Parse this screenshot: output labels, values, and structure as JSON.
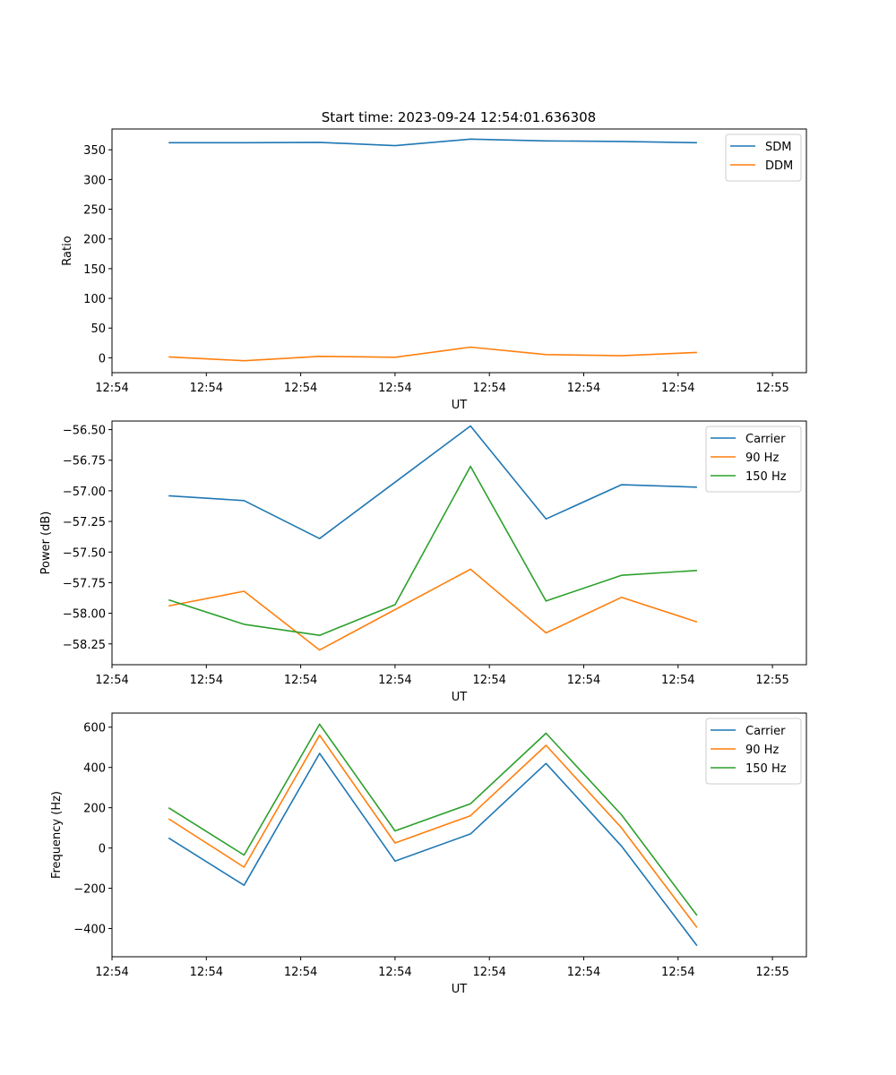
{
  "figure": {
    "title": "Start time: 2023-09-24 12:54:01.636308"
  },
  "chart_data": [
    {
      "type": "line",
      "name": "ratio",
      "xlabel": "UT",
      "ylabel": "Ratio",
      "x_ticks": [
        "12:54",
        "12:54",
        "12:54",
        "12:54",
        "12:54",
        "12:54",
        "12:54"
      ],
      "x_tick_last": "12:55",
      "xlim": [
        0,
        92
      ],
      "x": [
        7.5,
        17.5,
        27.5,
        37.5,
        47.5,
        57.5,
        67.5,
        77.5
      ],
      "ylim": [
        -25,
        385
      ],
      "y_ticks": [
        0,
        50,
        100,
        150,
        200,
        250,
        300,
        350
      ],
      "series": [
        {
          "name": "SDM",
          "color": "#1f77b4",
          "values": [
            362,
            362,
            362.5,
            357,
            368,
            365,
            364,
            362
          ]
        },
        {
          "name": "DDM",
          "color": "#ff7f0e",
          "values": [
            1.5,
            -5,
            2.5,
            1,
            18,
            5.5,
            3.5,
            9
          ]
        }
      ],
      "legend": "top-right"
    },
    {
      "type": "line",
      "name": "power",
      "xlabel": "UT",
      "ylabel": "Power (dB)",
      "x_ticks": [
        "12:54",
        "12:54",
        "12:54",
        "12:54",
        "12:54",
        "12:54",
        "12:54"
      ],
      "x_tick_last": "12:55",
      "xlim": [
        0,
        92
      ],
      "x": [
        7.5,
        17.5,
        27.5,
        37.5,
        47.5,
        57.5,
        67.5,
        77.5
      ],
      "ylim": [
        -58.42,
        -56.43
      ],
      "y_ticks": [
        -58.25,
        -58.0,
        -57.75,
        -57.5,
        -57.25,
        -57.0,
        -56.75,
        -56.5
      ],
      "series": [
        {
          "name": "Carrier",
          "color": "#1f77b4",
          "values": [
            -57.04,
            -57.08,
            -57.39,
            -56.93,
            -56.47,
            -57.23,
            -56.95,
            -56.97
          ]
        },
        {
          "name": "90 Hz",
          "color": "#ff7f0e",
          "values": [
            -57.94,
            -57.82,
            -58.3,
            -57.97,
            -57.64,
            -58.16,
            -57.87,
            -58.07
          ]
        },
        {
          "name": "150 Hz",
          "color": "#2ca02c",
          "values": [
            -57.89,
            -58.09,
            -58.18,
            -57.93,
            -56.8,
            -57.9,
            -57.69,
            -57.65
          ]
        }
      ],
      "legend": "top-right"
    },
    {
      "type": "line",
      "name": "frequency",
      "xlabel": "UT",
      "ylabel": "Frequency (Hz)",
      "x_ticks": [
        "12:54",
        "12:54",
        "12:54",
        "12:54",
        "12:54",
        "12:54",
        "12:54"
      ],
      "x_tick_last": "12:55",
      "xlim": [
        0,
        92
      ],
      "x": [
        7.5,
        17.5,
        27.5,
        37.5,
        47.5,
        57.5,
        67.5,
        77.5
      ],
      "ylim": [
        -540,
        670
      ],
      "y_ticks": [
        -400,
        -200,
        0,
        200,
        400,
        600
      ],
      "series": [
        {
          "name": "Carrier",
          "color": "#1f77b4",
          "values": [
            50,
            -185,
            470,
            -65,
            70,
            420,
            10,
            -485
          ]
        },
        {
          "name": "90 Hz",
          "color": "#ff7f0e",
          "values": [
            145,
            -95,
            560,
            25,
            160,
            510,
            100,
            -395
          ]
        },
        {
          "name": "150 Hz",
          "color": "#2ca02c",
          "values": [
            200,
            -35,
            615,
            85,
            220,
            570,
            165,
            -335
          ]
        }
      ],
      "legend": "top-right"
    }
  ]
}
